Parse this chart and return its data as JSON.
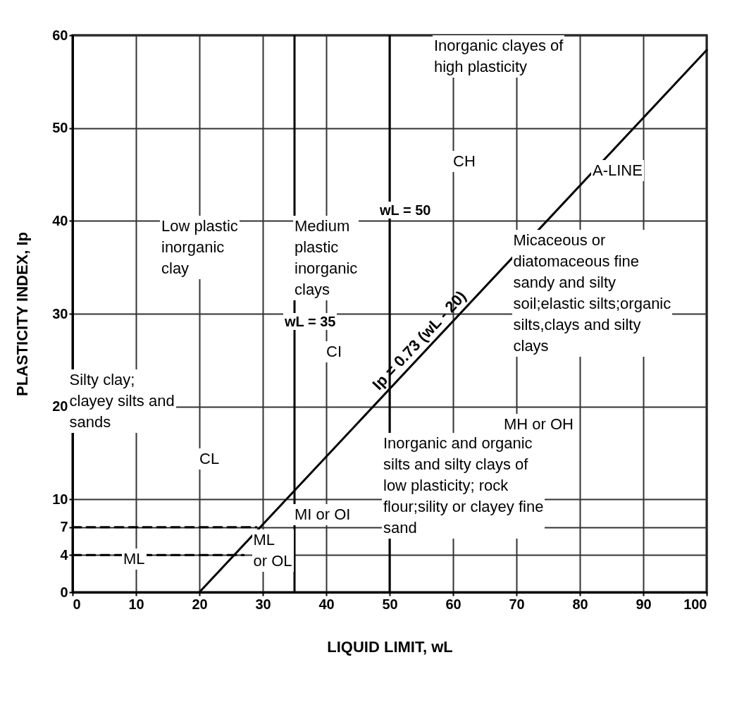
{
  "chart_data": {
    "type": "line",
    "xlabel": "LIQUID LIMIT, wL",
    "ylabel": "PLASTICITY INDEX, Ip",
    "xlim": [
      0,
      100
    ],
    "ylim": [
      0,
      60
    ],
    "xticks": [
      0,
      10,
      20,
      30,
      40,
      50,
      60,
      70,
      80,
      90,
      100
    ],
    "yticks": [
      0,
      4,
      7,
      10,
      20,
      30,
      40,
      50,
      60
    ],
    "grid": true,
    "marker": "none",
    "series": [
      {
        "name": "Ip = 0.73 (wL - 20)",
        "color": "#000000",
        "x": [
          20,
          100
        ],
        "values": [
          0,
          58.4
        ],
        "line_style": "solid"
      },
      {
        "color": "#000000",
        "x": [
          0,
          27
        ],
        "values": [
          4,
          4
        ],
        "line_style": "dashed"
      },
      {
        "color": "#000000",
        "x": [
          0,
          29
        ],
        "values": [
          7,
          7
        ],
        "line_style": "dashed"
      }
    ],
    "ref_lines": [
      {
        "axis": "x",
        "value": 35,
        "label": "wL = 35"
      },
      {
        "axis": "x",
        "value": 50,
        "label": "wL = 50"
      }
    ],
    "annotations": [
      "Inorganic clayes of\nhigh plasticity",
      "CH",
      "A-LINE",
      "Low plastic\ninorganic\nclay",
      "Medium\nplastic\ninorganic\nclays",
      "Micaceous or\ndiatomaceous fine\nsandy and silty\nsoil;elastic silts;organic\nsilts,clays and silty\nclays",
      "CI",
      "Silty clay;\nclayey silts and\nsands",
      "MH or OH",
      "Inorganic and organic\nsilts and silty clays of\nlow plasticity; rock\nflour;sility or clayey fine\nsand",
      "CL",
      "MI or OI",
      "ML",
      "ML\nor OL"
    ]
  }
}
